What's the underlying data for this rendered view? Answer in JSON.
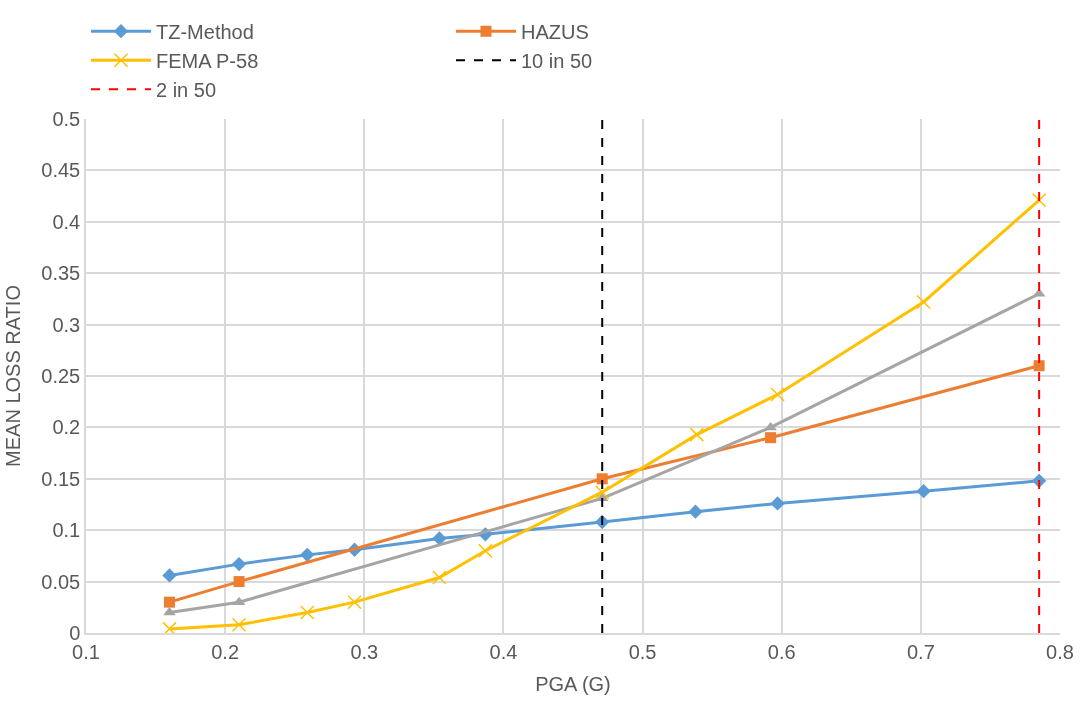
{
  "chart_data": {
    "type": "line",
    "xlabel": "PGA (G)",
    "ylabel": "MEAN LOSS RATIO",
    "xlim": [
      0.1,
      0.8
    ],
    "xticks": [
      0.1,
      0.2,
      0.3,
      0.4,
      0.5,
      0.6,
      0.7,
      0.8
    ],
    "ylim": [
      0,
      0.5
    ],
    "yticks": [
      0,
      0.05,
      0.1,
      0.15,
      0.2,
      0.25,
      0.3,
      0.35,
      0.4,
      0.45,
      0.5
    ],
    "grid": true,
    "legend": "top",
    "line_style": "solid",
    "series": [
      {
        "name": "TZ-Method",
        "color": "#5b9bd5",
        "marker": "diamond",
        "x": [
          0.16,
          0.21,
          0.259,
          0.293,
          0.354,
          0.387,
          0.471,
          0.538,
          0.597,
          0.702,
          0.785
        ],
        "values": [
          0.056,
          0.067,
          0.076,
          0.081,
          0.092,
          0.096,
          0.108,
          0.118,
          0.126,
          0.138,
          0.148
        ]
      },
      {
        "name": "HAZUS",
        "color": "#ed7d31",
        "marker": "square",
        "x": [
          0.16,
          0.21,
          0.471,
          0.592,
          0.785
        ],
        "values": [
          0.03,
          0.05,
          0.15,
          0.19,
          0.26
        ]
      },
      {
        "color": "#a5a5a5",
        "marker": "triangle",
        "x": [
          0.16,
          0.21,
          0.471,
          0.592,
          0.785
        ],
        "values": [
          0.02,
          0.03,
          0.131,
          0.2,
          0.33
        ]
      },
      {
        "name": "FEMA P-58",
        "color": "#ffc000",
        "marker": "cross",
        "x": [
          0.16,
          0.21,
          0.259,
          0.293,
          0.354,
          0.387,
          0.471,
          0.539,
          0.597,
          0.702,
          0.785
        ],
        "values": [
          0.004,
          0.008,
          0.02,
          0.03,
          0.054,
          0.08,
          0.137,
          0.193,
          0.232,
          0.322,
          0.421
        ]
      }
    ],
    "ref_lines": [
      {
        "axis": "x",
        "value": 0.471,
        "label": "10 in 50",
        "color": "#000000",
        "line_style": "dashed"
      },
      {
        "axis": "x",
        "value": 0.785,
        "label": "2 in 50",
        "color": "#ff0000",
        "line_style": "dashed"
      }
    ]
  }
}
